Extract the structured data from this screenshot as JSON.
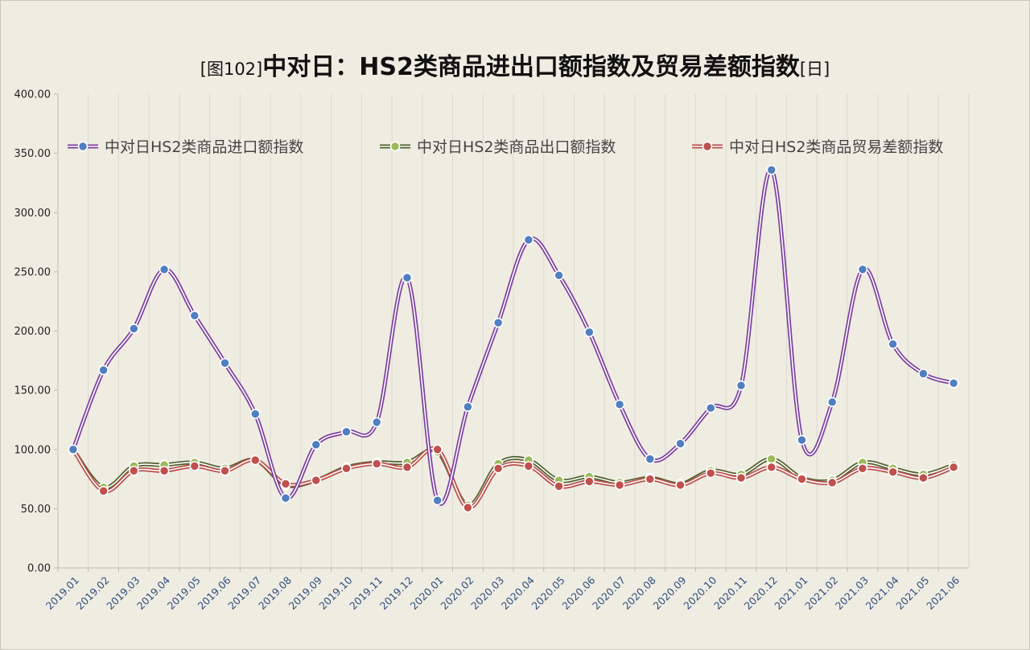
{
  "title": {
    "prefix": "[图102]",
    "main": "中对日：HS2类商品进出口额指数及贸易差额指数",
    "suffix": "[日]"
  },
  "chart_data": {
    "type": "line",
    "smooth": true,
    "title": "[图102]中对日：HS2类商品进出口额指数及贸易差额指数[日]",
    "xlabel": "",
    "ylabel": "",
    "ylim": [
      0,
      400
    ],
    "yticks": [
      "0.00",
      "50.00",
      "100.00",
      "150.00",
      "200.00",
      "250.00",
      "300.00",
      "350.00",
      "400.00"
    ],
    "grid": "vertical",
    "legend_position": "top",
    "categories": [
      "2019.01",
      "2019.02",
      "2019.03",
      "2019.04",
      "2019.05",
      "2019.06",
      "2019.07",
      "2019.08",
      "2019.09",
      "2019.10",
      "2019.11",
      "2019.12",
      "2020.01",
      "2020.02",
      "2020.03",
      "2020.04",
      "2020.05",
      "2020.06",
      "2020.07",
      "2020.08",
      "2020.09",
      "2020.10",
      "2020.11",
      "2020.12",
      "2021.01",
      "2021.02",
      "2021.03",
      "2021.04",
      "2021.05",
      "2021.06"
    ],
    "series": [
      {
        "name": "中对日HS2类商品进口额指数",
        "line_color": "#7a3f9e",
        "marker_color": "#4f7fc0",
        "values": [
          100,
          167,
          202,
          252,
          213,
          173,
          130,
          59,
          104,
          115,
          123,
          245,
          57,
          136,
          207,
          277,
          247,
          199,
          138,
          92,
          105,
          135,
          154,
          336,
          108,
          140,
          252,
          189,
          164,
          156
        ]
      },
      {
        "name": "中对日HS2类商品出口额指数",
        "line_color": "#4e5f2a",
        "marker_color": "#9bbb59",
        "values": [
          100,
          68,
          86,
          87,
          89,
          84,
          91,
          70,
          74,
          85,
          89,
          89,
          98,
          53,
          88,
          91,
          74,
          77,
          72,
          76,
          71,
          82,
          79,
          92,
          76,
          74,
          89,
          84,
          79,
          87
        ]
      },
      {
        "name": "中对日HS2类商品贸易差额指数",
        "line_color": "#b84e4a",
        "marker_color": "#c0504d",
        "values": [
          100,
          65,
          82,
          82,
          86,
          82,
          91,
          71,
          74,
          84,
          88,
          85,
          100,
          51,
          84,
          86,
          69,
          73,
          70,
          75,
          70,
          80,
          76,
          85,
          75,
          72,
          84,
          81,
          76,
          85
        ]
      }
    ]
  }
}
